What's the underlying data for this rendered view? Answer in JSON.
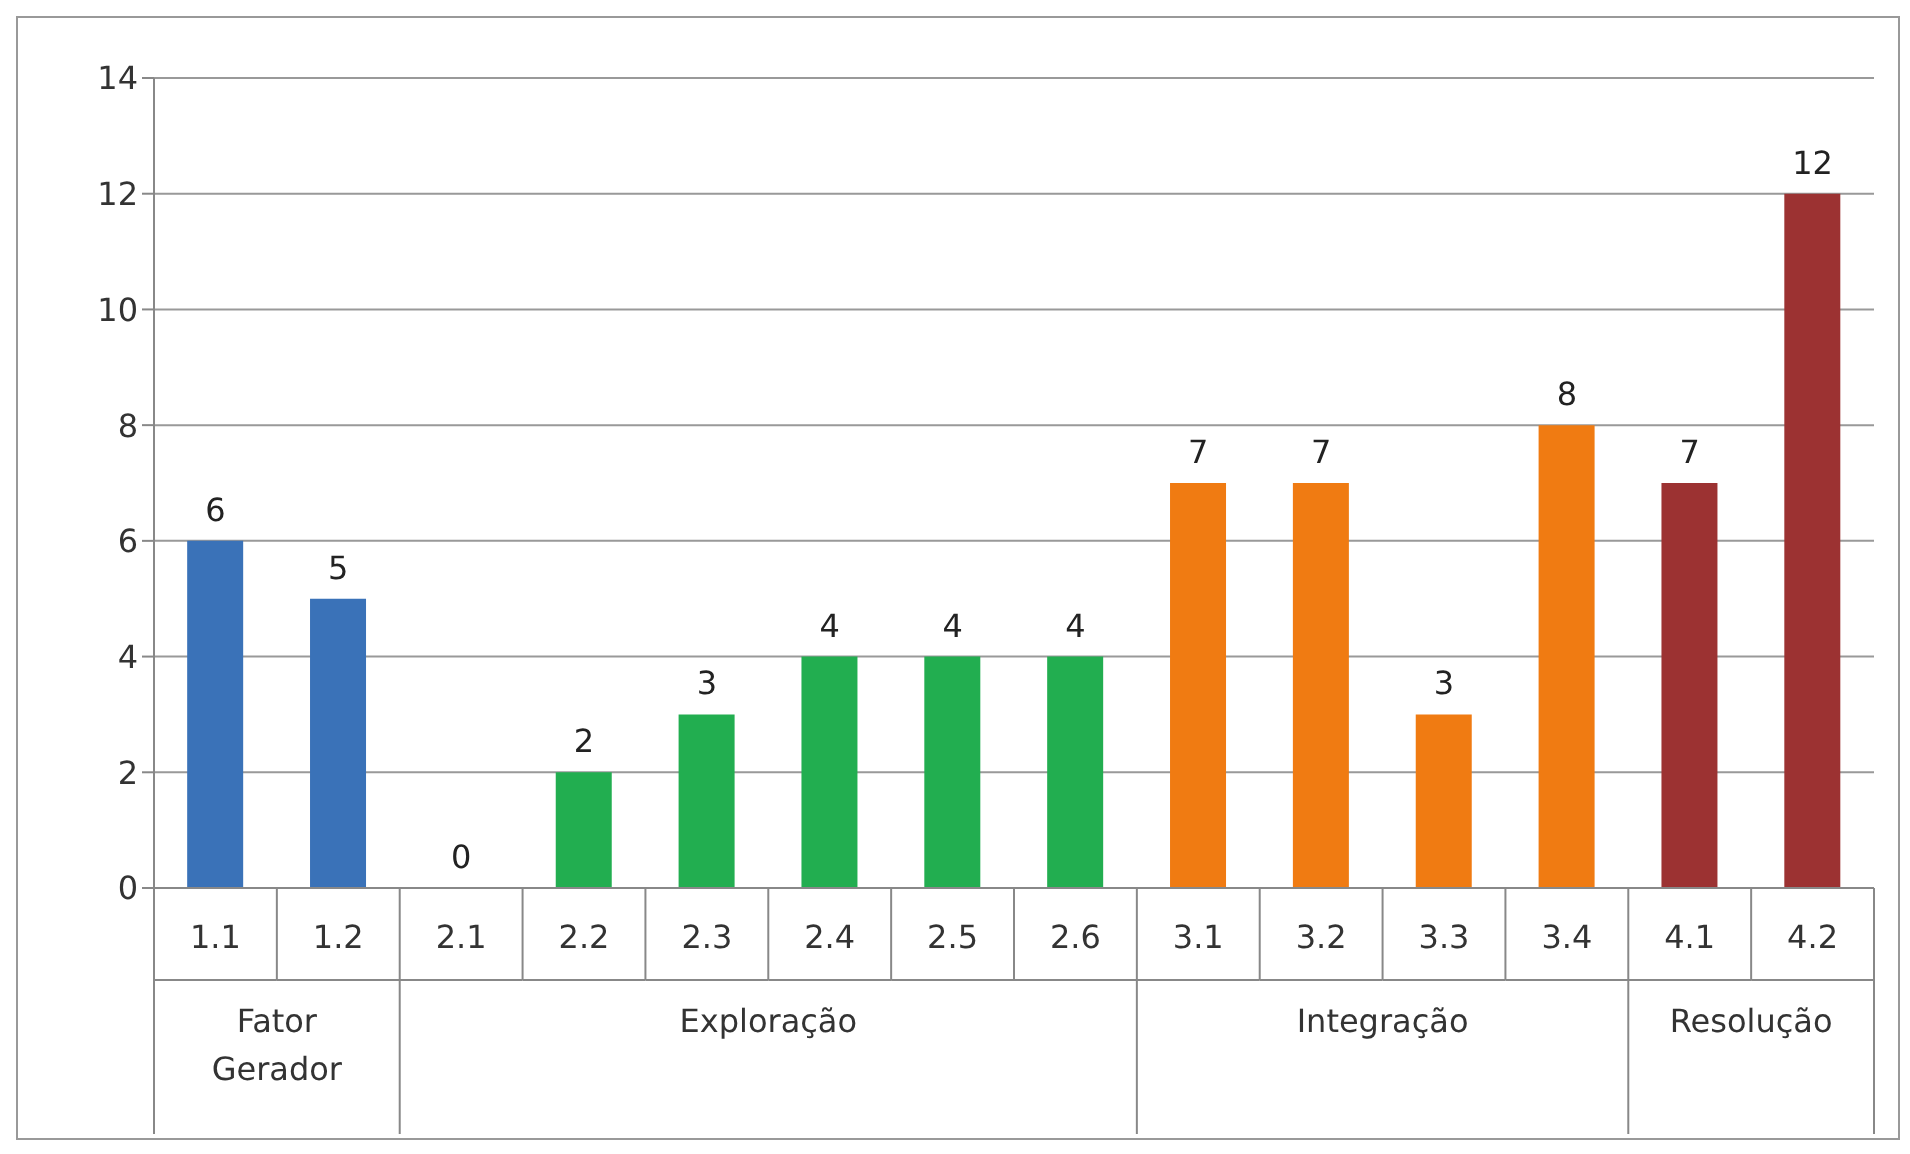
{
  "chart_data": {
    "type": "bar",
    "categories": [
      "1.1",
      "1.2",
      "2.1",
      "2.2",
      "2.3",
      "2.4",
      "2.5",
      "2.6",
      "3.1",
      "3.2",
      "3.3",
      "3.4",
      "4.1",
      "4.2"
    ],
    "series": [
      {
        "color": "#3a72b8",
        "values": [
          6,
          5,
          null,
          null,
          null,
          null,
          null,
          null,
          null,
          null,
          null,
          null,
          null,
          null
        ]
      },
      {
        "color": "#22ae50",
        "values": [
          null,
          null,
          0,
          2,
          3,
          4,
          4,
          4,
          null,
          null,
          null,
          null,
          null,
          null
        ]
      },
      {
        "color": "#f07b12",
        "values": [
          null,
          null,
          null,
          null,
          null,
          null,
          null,
          null,
          7,
          7,
          3,
          8,
          null,
          null
        ]
      },
      {
        "color": "#9c3232",
        "values": [
          null,
          null,
          null,
          null,
          null,
          null,
          null,
          null,
          null,
          null,
          null,
          null,
          7,
          12
        ]
      }
    ],
    "annotations": [
      "Fator Gerador",
      "Exploração",
      "Integração",
      "Resolução"
    ],
    "ylim": [
      0,
      14
    ],
    "yticks": [
      0,
      2,
      4,
      6,
      8,
      10,
      12,
      14
    ],
    "grid": "y",
    "data_labels": true
  }
}
